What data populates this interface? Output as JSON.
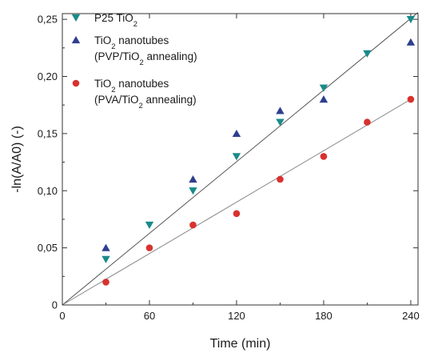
{
  "chart_data": {
    "type": "scatter",
    "title": "",
    "xlabel": "Time (min)",
    "ylabel": "-ln(A/A0) (-)",
    "xlim": [
      0,
      245
    ],
    "ylim": [
      0,
      0.255
    ],
    "x_ticks": [
      0,
      60,
      120,
      180,
      240
    ],
    "x_tick_labels": [
      "0",
      "60",
      "120",
      "180",
      "240"
    ],
    "y_ticks": [
      0,
      0.05,
      0.1,
      0.15,
      0.2,
      0.25
    ],
    "y_tick_labels": [
      "0",
      "0,05",
      "0,10",
      "0,15",
      "0,20",
      "0,25"
    ],
    "grid": false,
    "legend_position": "top-left",
    "series": [
      {
        "name": "P25 TiO2",
        "legend_lines": [
          "P25 TiO|2|"
        ],
        "marker": "triangle-down",
        "color": "#1a8a8a",
        "x": [
          0,
          30,
          60,
          90,
          120,
          150,
          180,
          210,
          240
        ],
        "y": [
          0,
          0.04,
          0.07,
          0.1,
          0.13,
          0.16,
          0.19,
          0.22,
          0.25
        ],
        "fit_line": {
          "x": [
            0,
            245
          ],
          "y": [
            0,
            0.256
          ],
          "color": "#555555"
        }
      },
      {
        "name": "TiO2 nanotubes (PVP/TiO2 annealing)",
        "legend_lines": [
          "TiO|2| nanotubes",
          "(PVP/TiO|2| annealing)"
        ],
        "marker": "triangle-up",
        "color": "#2e3f8f",
        "x": [
          0,
          30,
          90,
          120,
          150,
          180,
          240
        ],
        "y": [
          0,
          0.05,
          0.11,
          0.15,
          0.17,
          0.18,
          0.23
        ]
      },
      {
        "name": "TiO2 nanotubes (PVA/TiO2 annealing)",
        "legend_lines": [
          "TiO|2| nanotubes",
          "(PVA/TiO|2| annealing)"
        ],
        "marker": "circle",
        "color": "#d8322e",
        "x": [
          0,
          30,
          60,
          90,
          120,
          150,
          180,
          210,
          240
        ],
        "y": [
          0,
          0.02,
          0.05,
          0.07,
          0.08,
          0.11,
          0.13,
          0.16,
          0.18
        ],
        "fit_line": {
          "x": [
            0,
            240
          ],
          "y": [
            0,
            0.18
          ],
          "color": "#888888"
        }
      }
    ]
  }
}
